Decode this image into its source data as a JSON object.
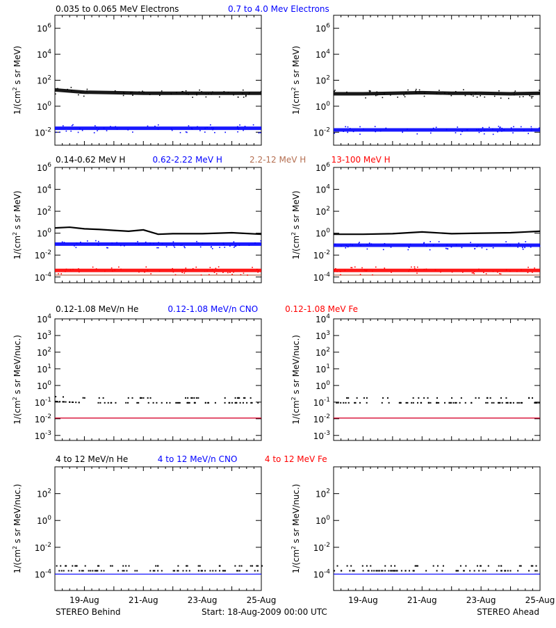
{
  "colors": {
    "black": "#000000",
    "blue": "#0000ff",
    "brown": "#b46e50",
    "red": "#ff0000"
  },
  "footer": {
    "left": "STEREO Behind",
    "center": "Start: 18-Aug-2009 00:00 UTC",
    "right": "STEREO Ahead"
  },
  "headers": [
    {
      "parts": [
        {
          "text": "0.035 to 0.065 MeV Electrons",
          "color": "#000000"
        },
        {
          "text": "0.7 to 4.0 Mev Electrons",
          "color": "#0000ff"
        }
      ]
    },
    {
      "parts": [
        {
          "text": "0.14-0.62 MeV H",
          "color": "#000000"
        },
        {
          "text": "0.62-2.22 MeV H",
          "color": "#0000ff"
        },
        {
          "text": "2.2-12 MeV H",
          "color": "#b46e50"
        },
        {
          "text": "13-100 MeV H",
          "color": "#ff0000"
        }
      ]
    },
    {
      "parts": [
        {
          "text": "0.12-1.08 MeV/n He",
          "color": "#000000"
        },
        {
          "text": "0.12-1.08 MeV/n CNO",
          "color": "#0000ff"
        },
        {
          "text": "0.12-1.08 MeV Fe",
          "color": "#ff0000"
        }
      ]
    },
    {
      "parts": [
        {
          "text": "4 to 12 MeV/n He",
          "color": "#000000"
        },
        {
          "text": "4 to 12 MeV/n CNO",
          "color": "#0000ff"
        },
        {
          "text": "4 to 12 MeV Fe",
          "color": "#ff0000"
        }
      ]
    }
  ],
  "chart_data": [
    {
      "type": "scatter",
      "row": 0,
      "side": "STEREO Behind",
      "ylabel": "1/(cm^2 s sr MeV)",
      "yscale": "log",
      "ylim": [
        0.001,
        10000000
      ],
      "x_ticks": [
        "19-Aug",
        "21-Aug",
        "23-Aug",
        "25-Aug"
      ],
      "y_ticks": [
        {
          "e": -2,
          "label": "10-2"
        },
        {
          "e": 0,
          "label": "100"
        },
        {
          "e": 2,
          "label": "102"
        },
        {
          "e": 4,
          "label": "104"
        },
        {
          "e": 6,
          "label": "106"
        }
      ],
      "series": [
        {
          "name": "0.035 to 0.065 MeV Electrons",
          "color": "#000000",
          "style": "band",
          "x": [
            0,
            1,
            2,
            3,
            4,
            5,
            6,
            7
          ],
          "y": [
            18,
            12,
            11,
            10,
            10,
            10,
            10,
            10
          ]
        },
        {
          "name": "0.7 to 4.0 Mev Electrons",
          "color": "#0000ff",
          "style": "band",
          "x": [
            0,
            1,
            2,
            3,
            4,
            5,
            6,
            7
          ],
          "y": [
            0.02,
            0.02,
            0.02,
            0.02,
            0.02,
            0.02,
            0.02,
            0.02
          ]
        }
      ]
    },
    {
      "type": "scatter",
      "row": 0,
      "side": "STEREO Ahead",
      "ylabel": "1/(cm^2 s sr MeV)",
      "yscale": "log",
      "ylim": [
        0.001,
        10000000
      ],
      "x_ticks": [
        "19-Aug",
        "21-Aug",
        "23-Aug",
        "25-Aug"
      ],
      "y_ticks": [
        {
          "e": -2,
          "label": "10-2"
        },
        {
          "e": 0,
          "label": "100"
        },
        {
          "e": 2,
          "label": "102"
        },
        {
          "e": 4,
          "label": "104"
        },
        {
          "e": 6,
          "label": "106"
        }
      ],
      "series": [
        {
          "name": "0.035 to 0.065 MeV Electrons",
          "color": "#000000",
          "style": "band",
          "x": [
            0,
            1,
            2,
            3,
            4,
            5,
            6,
            7
          ],
          "y": [
            9,
            9,
            10,
            11,
            10,
            10,
            9,
            10
          ]
        },
        {
          "name": "0.7 to 4.0 Mev Electrons",
          "color": "#0000ff",
          "style": "band",
          "x": [
            0,
            1,
            2,
            3,
            4,
            5,
            6,
            7
          ],
          "y": [
            0.015,
            0.015,
            0.015,
            0.015,
            0.015,
            0.015,
            0.015,
            0.015
          ]
        }
      ]
    },
    {
      "type": "scatter",
      "row": 1,
      "side": "STEREO Behind",
      "ylabel": "1/(cm^2 s sr MeV)",
      "yscale": "log",
      "ylim": [
        3e-05,
        1000000
      ],
      "x_ticks": [
        "19-Aug",
        "21-Aug",
        "23-Aug",
        "25-Aug"
      ],
      "y_ticks": [
        {
          "e": -4,
          "label": "10-4"
        },
        {
          "e": -2,
          "label": "10-2"
        },
        {
          "e": 0,
          "label": "100"
        },
        {
          "e": 2,
          "label": "102"
        },
        {
          "e": 4,
          "label": "104"
        },
        {
          "e": 6,
          "label": "106"
        }
      ],
      "series": [
        {
          "name": "0.14-0.62 MeV H",
          "color": "#000000",
          "style": "line",
          "x": [
            0,
            0.5,
            1,
            1.5,
            2,
            2.5,
            3,
            3.5,
            4,
            5,
            6,
            7
          ],
          "y": [
            3,
            3.5,
            2.5,
            2.2,
            1.8,
            1.5,
            2,
            0.8,
            0.9,
            0.9,
            1.1,
            0.8
          ]
        },
        {
          "name": "0.62-2.22 MeV H",
          "color": "#0000ff",
          "style": "band",
          "x": [
            0,
            1,
            2,
            3,
            4,
            5,
            6,
            7
          ],
          "y": [
            0.1,
            0.1,
            0.1,
            0.1,
            0.1,
            0.1,
            0.1,
            0.1
          ]
        },
        {
          "name": "2.2-12 MeV H",
          "color": "#b46e50",
          "style": "line",
          "x": [
            0,
            7
          ],
          "y": [
            0.00015,
            0.00015
          ]
        },
        {
          "name": "13-100 MeV H",
          "color": "#ff0000",
          "style": "band",
          "x": [
            0,
            1,
            2,
            3,
            4,
            5,
            6,
            7
          ],
          "y": [
            0.0004,
            0.0004,
            0.0004,
            0.0004,
            0.0004,
            0.0004,
            0.0004,
            0.0004
          ]
        }
      ]
    },
    {
      "type": "scatter",
      "row": 1,
      "side": "STEREO Ahead",
      "ylabel": "1/(cm^2 s sr MeV)",
      "yscale": "log",
      "ylim": [
        3e-05,
        1000000
      ],
      "x_ticks": [
        "19-Aug",
        "21-Aug",
        "23-Aug",
        "25-Aug"
      ],
      "y_ticks": [
        {
          "e": -4,
          "label": "10-4"
        },
        {
          "e": -2,
          "label": "10-2"
        },
        {
          "e": 0,
          "label": "100"
        },
        {
          "e": 2,
          "label": "102"
        },
        {
          "e": 4,
          "label": "104"
        },
        {
          "e": 6,
          "label": "106"
        }
      ],
      "series": [
        {
          "name": "0.14-0.62 MeV H",
          "color": "#000000",
          "style": "line",
          "x": [
            0,
            1,
            2,
            3,
            4,
            5,
            6,
            7
          ],
          "y": [
            0.8,
            0.8,
            0.9,
            1.3,
            0.9,
            1,
            1.1,
            1.5
          ]
        },
        {
          "name": "0.62-2.22 MeV H",
          "color": "#0000ff",
          "style": "band",
          "x": [
            0,
            1,
            2,
            3,
            4,
            5,
            6,
            7
          ],
          "y": [
            0.08,
            0.08,
            0.08,
            0.08,
            0.08,
            0.08,
            0.08,
            0.08
          ]
        },
        {
          "name": "2.2-12 MeV H",
          "color": "#b46e50",
          "style": "line",
          "x": [
            0,
            7
          ],
          "y": [
            0.00015,
            0.00015
          ]
        },
        {
          "name": "13-100 MeV H",
          "color": "#ff0000",
          "style": "band",
          "x": [
            0,
            1,
            2,
            3,
            4,
            5,
            6,
            7
          ],
          "y": [
            0.0004,
            0.0004,
            0.0004,
            0.0004,
            0.0004,
            0.0004,
            0.0004,
            0.0004
          ]
        }
      ]
    },
    {
      "type": "scatter",
      "row": 2,
      "side": "STEREO Behind",
      "ylabel": "1/(cm^2 s sr MeV/nuc.)",
      "yscale": "log",
      "ylim": [
        0.0005,
        10000
      ],
      "x_ticks": [
        "19-Aug",
        "21-Aug",
        "23-Aug",
        "25-Aug"
      ],
      "y_ticks": [
        {
          "e": -3,
          "label": "10-3"
        },
        {
          "e": -2,
          "label": "10-2"
        },
        {
          "e": -1,
          "label": "10-1"
        },
        {
          "e": 0,
          "label": "100"
        },
        {
          "e": 1,
          "label": "101"
        },
        {
          "e": 2,
          "label": "102"
        },
        {
          "e": 3,
          "label": "103"
        },
        {
          "e": 4,
          "label": "104"
        }
      ],
      "series": [
        {
          "name": "0.12-1.08 MeV/n He",
          "color": "#000000",
          "style": "dots",
          "x": [
            0,
            1,
            2,
            3,
            4,
            5,
            6,
            7
          ],
          "y": [
            0.12,
            0.1,
            0.1,
            0.1,
            0.1,
            0.1,
            0.1,
            0.1
          ]
        },
        {
          "name": "0.12-1.08 MeV/n CNO",
          "color": "#0000ff",
          "style": "line",
          "x": [
            0,
            7
          ],
          "y": [
            0.011,
            0.011
          ]
        },
        {
          "name": "0.12-1.08 MeV Fe",
          "color": "#ff0000",
          "style": "line",
          "x": [
            0,
            7
          ],
          "y": [
            0.011,
            0.011
          ]
        }
      ]
    },
    {
      "type": "scatter",
      "row": 2,
      "side": "STEREO Ahead",
      "ylabel": "1/(cm^2 s sr MeV/nuc.)",
      "yscale": "log",
      "ylim": [
        0.0005,
        10000
      ],
      "x_ticks": [
        "19-Aug",
        "21-Aug",
        "23-Aug",
        "25-Aug"
      ],
      "y_ticks": [
        {
          "e": -3,
          "label": "10-3"
        },
        {
          "e": -2,
          "label": "10-2"
        },
        {
          "e": -1,
          "label": "10-1"
        },
        {
          "e": 0,
          "label": "100"
        },
        {
          "e": 1,
          "label": "101"
        },
        {
          "e": 2,
          "label": "102"
        },
        {
          "e": 3,
          "label": "103"
        },
        {
          "e": 4,
          "label": "104"
        }
      ],
      "series": [
        {
          "name": "0.12-1.08 MeV/n He",
          "color": "#000000",
          "style": "dots",
          "x": [
            0,
            1,
            2,
            3,
            4,
            5,
            6,
            7
          ],
          "y": [
            0.1,
            0.1,
            0.1,
            0.1,
            0.1,
            0.1,
            0.1,
            0.1
          ]
        },
        {
          "name": "0.12-1.08 MeV/n CNO",
          "color": "#0000ff",
          "style": "line",
          "x": [
            0,
            7
          ],
          "y": [
            0.011,
            0.011
          ]
        },
        {
          "name": "0.12-1.08 MeV Fe",
          "color": "#ff0000",
          "style": "line",
          "x": [
            0,
            7
          ],
          "y": [
            0.011,
            0.011
          ]
        }
      ]
    },
    {
      "type": "scatter",
      "row": 3,
      "side": "STEREO Behind",
      "ylabel": "1/(cm^2 s sr MeV/nuc.)",
      "yscale": "log",
      "ylim": [
        6e-06,
        10000
      ],
      "x_ticks": [
        "19-Aug",
        "21-Aug",
        "23-Aug",
        "25-Aug"
      ],
      "y_ticks": [
        {
          "e": -4,
          "label": "10-4"
        },
        {
          "e": -2,
          "label": "10-2"
        },
        {
          "e": 0,
          "label": "100"
        },
        {
          "e": 2,
          "label": "102"
        }
      ],
      "series": [
        {
          "name": "4 to 12 MeV/n He",
          "color": "#000000",
          "style": "dots",
          "x": [
            0,
            1,
            2,
            3,
            4,
            5,
            6,
            7
          ],
          "y": [
            0.0002,
            0.0002,
            0.0002,
            0.0002,
            0.0002,
            0.0002,
            0.0002,
            0.0002
          ]
        },
        {
          "name": "4 to 12 MeV/n CNO",
          "color": "#0000ff",
          "style": "line",
          "x": [
            0,
            7
          ],
          "y": [
            0.0001,
            0.0001
          ]
        }
      ]
    },
    {
      "type": "scatter",
      "row": 3,
      "side": "STEREO Ahead",
      "ylabel": "1/(cm^2 s sr MeV/nuc.)",
      "yscale": "log",
      "ylim": [
        6e-06,
        10000
      ],
      "x_ticks": [
        "19-Aug",
        "21-Aug",
        "23-Aug",
        "25-Aug"
      ],
      "y_ticks": [
        {
          "e": -4,
          "label": "10-4"
        },
        {
          "e": -2,
          "label": "10-2"
        },
        {
          "e": 0,
          "label": "100"
        },
        {
          "e": 2,
          "label": "102"
        }
      ],
      "series": [
        {
          "name": "4 to 12 MeV/n He",
          "color": "#000000",
          "style": "dots",
          "x": [
            0,
            1,
            2,
            3,
            4,
            5,
            6,
            7
          ],
          "y": [
            0.0002,
            0.0002,
            0.0002,
            0.0002,
            0.0002,
            0.0002,
            0.0002,
            0.0002
          ]
        },
        {
          "name": "4 to 12 MeV/n CNO",
          "color": "#0000ff",
          "style": "line",
          "x": [
            0,
            7
          ],
          "y": [
            0.0001,
            0.0001
          ]
        }
      ]
    }
  ]
}
